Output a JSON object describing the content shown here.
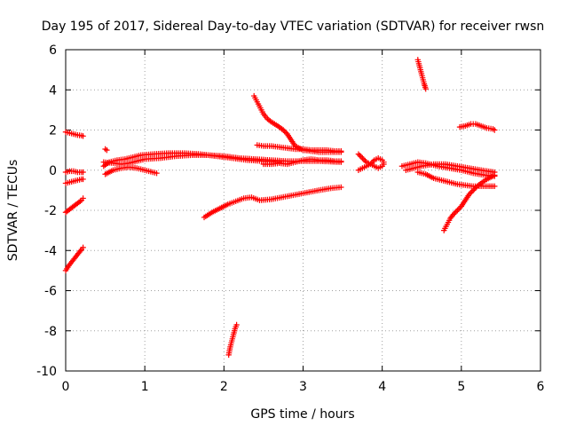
{
  "chart_data": {
    "type": "scatter",
    "title": "Day 195 of 2017, Sidereal Day-to-day VTEC variation (SDTVAR) for receiver rwsn",
    "xlabel": "GPS time / hours",
    "ylabel": "SDTVAR / TECUs",
    "xlim": [
      0,
      6
    ],
    "ylim": [
      -10,
      6
    ],
    "xticks": [
      "0",
      "1",
      "2",
      "3",
      "4",
      "5",
      "6"
    ],
    "yticks": [
      "-10",
      "-8",
      "-6",
      "-4",
      "-2",
      "0",
      "2",
      "4",
      "6"
    ],
    "grid": true,
    "marker": "+",
    "color": "#ff0000",
    "segments": [
      {
        "x": [
          0.0,
          0.05,
          0.1,
          0.15,
          0.2,
          0.22
        ],
        "y": [
          1.9,
          1.85,
          1.8,
          1.75,
          1.72,
          1.7
        ]
      },
      {
        "x": [
          0.0,
          0.05,
          0.1,
          0.15,
          0.2,
          0.22
        ],
        "y": [
          -0.1,
          -0.05,
          -0.05,
          -0.1,
          -0.1,
          -0.1
        ]
      },
      {
        "x": [
          0.0,
          0.05,
          0.1,
          0.15,
          0.2,
          0.22
        ],
        "y": [
          -0.65,
          -0.6,
          -0.55,
          -0.5,
          -0.45,
          -0.45
        ]
      },
      {
        "x": [
          0.0,
          0.05,
          0.1,
          0.15,
          0.2,
          0.22
        ],
        "y": [
          -2.1,
          -1.95,
          -1.8,
          -1.65,
          -1.5,
          -1.4
        ]
      },
      {
        "x": [
          0.0,
          0.04,
          0.08,
          0.12,
          0.16,
          0.2,
          0.22
        ],
        "y": [
          -5.0,
          -4.75,
          -4.55,
          -4.35,
          -4.15,
          -3.95,
          -3.85
        ]
      },
      {
        "x": [
          0.48,
          0.55,
          0.65,
          0.75,
          0.85,
          0.95,
          1.1,
          1.3,
          1.5,
          1.7,
          1.9,
          2.1,
          2.3,
          2.5,
          2.7
        ],
        "y": [
          0.2,
          0.4,
          0.5,
          0.55,
          0.65,
          0.75,
          0.8,
          0.85,
          0.85,
          0.8,
          0.7,
          0.6,
          0.5,
          0.45,
          0.4
        ]
      },
      {
        "x": [
          0.48,
          0.6,
          0.7,
          0.8,
          0.9,
          1.0,
          1.2,
          1.4,
          1.6,
          1.8,
          2.0,
          2.2,
          2.4,
          2.6,
          2.8,
          3.0,
          3.2,
          3.48
        ],
        "y": [
          0.4,
          0.35,
          0.3,
          0.35,
          0.45,
          0.55,
          0.6,
          0.7,
          0.75,
          0.75,
          0.7,
          0.6,
          0.55,
          0.5,
          0.45,
          0.45,
          0.45,
          0.4
        ]
      },
      {
        "x": [
          0.5,
          0.6,
          0.7,
          0.8,
          0.9,
          1.0,
          1.1,
          1.15
        ],
        "y": [
          -0.2,
          0.0,
          0.1,
          0.15,
          0.1,
          0.0,
          -0.1,
          -0.15
        ]
      },
      {
        "x": [
          0.5,
          0.52
        ],
        "y": [
          1.05,
          1.0
        ]
      },
      {
        "x": [
          1.75,
          1.85,
          1.95,
          2.05,
          2.15,
          2.25,
          2.35,
          2.45,
          2.6,
          2.8,
          3.0,
          3.2,
          3.35,
          3.48
        ],
        "y": [
          -2.35,
          -2.1,
          -1.9,
          -1.7,
          -1.55,
          -1.4,
          -1.35,
          -1.5,
          -1.45,
          -1.3,
          -1.15,
          -1.0,
          -0.9,
          -0.85
        ]
      },
      {
        "x": [
          2.38,
          2.42,
          2.46,
          2.5,
          2.55,
          2.6,
          2.68,
          2.75,
          2.8,
          2.85,
          2.9,
          3.0,
          3.1,
          3.2,
          3.3,
          3.48
        ],
        "y": [
          3.7,
          3.4,
          3.1,
          2.8,
          2.55,
          2.4,
          2.2,
          2.0,
          1.8,
          1.5,
          1.2,
          1.0,
          0.95,
          0.9,
          0.9,
          0.9
        ]
      },
      {
        "x": [
          2.42,
          2.5,
          2.6,
          2.7,
          2.8,
          2.9,
          3.0,
          3.1,
          3.2,
          3.3,
          3.4,
          3.48
        ],
        "y": [
          1.25,
          1.2,
          1.2,
          1.15,
          1.1,
          1.05,
          1.05,
          1.0,
          1.0,
          1.0,
          0.95,
          0.95
        ]
      },
      {
        "x": [
          2.5,
          2.6,
          2.7,
          2.8,
          2.9,
          3.0,
          3.1,
          3.2,
          3.3,
          3.4,
          3.48
        ],
        "y": [
          0.3,
          0.3,
          0.35,
          0.3,
          0.4,
          0.5,
          0.55,
          0.5,
          0.5,
          0.45,
          0.45
        ]
      },
      {
        "x": [
          2.06,
          2.08,
          2.1,
          2.12,
          2.14,
          2.16
        ],
        "y": [
          -9.2,
          -8.8,
          -8.5,
          -8.2,
          -7.9,
          -7.7
        ]
      },
      {
        "x": [
          3.7,
          3.75,
          3.8,
          3.85,
          3.9,
          3.95,
          4.0,
          4.02
        ],
        "y": [
          0.8,
          0.6,
          0.4,
          0.3,
          0.5,
          0.6,
          0.5,
          0.4
        ]
      },
      {
        "x": [
          3.7,
          3.75,
          3.8,
          3.85,
          3.9,
          3.95,
          4.0,
          4.02
        ],
        "y": [
          0.0,
          0.1,
          0.2,
          0.3,
          0.2,
          0.1,
          0.2,
          0.3
        ]
      },
      {
        "x": [
          4.45,
          4.47,
          4.49,
          4.51,
          4.53,
          4.55
        ],
        "y": [
          5.5,
          5.2,
          4.9,
          4.6,
          4.3,
          4.05
        ]
      },
      {
        "x": [
          4.25,
          4.35,
          4.45,
          4.55,
          4.7,
          4.85,
          5.0,
          5.15,
          5.3,
          5.42
        ],
        "y": [
          0.2,
          0.3,
          0.4,
          0.35,
          0.2,
          0.1,
          0.0,
          -0.15,
          -0.25,
          -0.3
        ]
      },
      {
        "x": [
          4.3,
          4.4,
          4.5,
          4.65,
          4.8,
          4.95,
          5.1,
          5.25,
          5.42
        ],
        "y": [
          0.0,
          0.1,
          0.2,
          0.3,
          0.3,
          0.2,
          0.1,
          0.0,
          -0.1
        ]
      },
      {
        "x": [
          4.45,
          4.55,
          4.65,
          4.75,
          4.85,
          4.95,
          5.05,
          5.15,
          5.25,
          5.35,
          5.42
        ],
        "y": [
          -0.1,
          -0.2,
          -0.4,
          -0.5,
          -0.6,
          -0.7,
          -0.75,
          -0.8,
          -0.8,
          -0.8,
          -0.8
        ]
      },
      {
        "x": [
          4.78,
          4.82,
          4.86,
          4.9,
          4.95,
          5.0,
          5.05,
          5.1,
          5.2,
          5.3,
          5.42
        ],
        "y": [
          -3.0,
          -2.7,
          -2.4,
          -2.2,
          -2.0,
          -1.8,
          -1.5,
          -1.2,
          -0.8,
          -0.5,
          -0.25
        ]
      },
      {
        "x": [
          4.98,
          5.05,
          5.12,
          5.18,
          5.25,
          5.32,
          5.4,
          5.42
        ],
        "y": [
          2.15,
          2.2,
          2.3,
          2.3,
          2.2,
          2.1,
          2.05,
          2.0
        ]
      }
    ]
  }
}
